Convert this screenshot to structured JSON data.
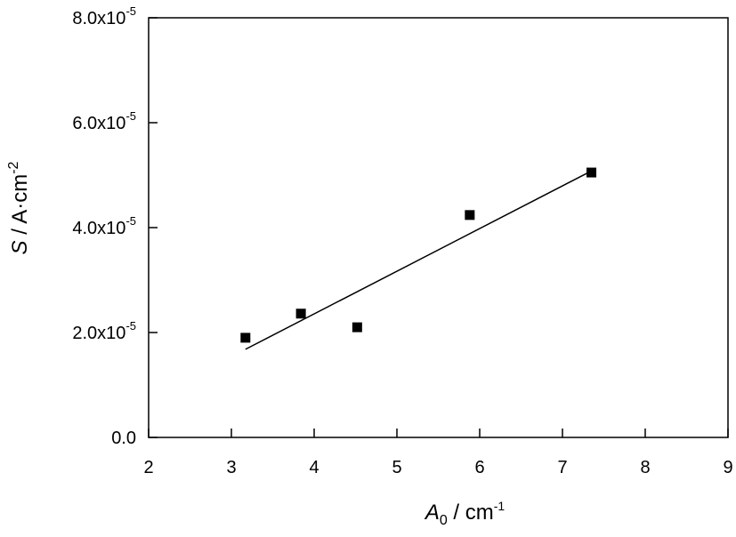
{
  "chart_data": {
    "type": "scatter",
    "xlabel": {
      "symbol": "A",
      "subscript": "0",
      "unit": " / cm",
      "unit_exp": "-1"
    },
    "ylabel": {
      "symbol": "S",
      "unit": " / A·cm",
      "unit_exp": "-2"
    },
    "xlim": [
      2,
      9
    ],
    "ylim": [
      0,
      8e-05
    ],
    "x_ticks": [
      2,
      3,
      4,
      5,
      6,
      7,
      8,
      9
    ],
    "x_tick_labels": [
      "2",
      "3",
      "4",
      "5",
      "6",
      "7",
      "8",
      "9"
    ],
    "y_ticks": [
      {
        "value": 0,
        "label": "0.0",
        "exp": ""
      },
      {
        "value": 2e-05,
        "label": "2.0x10",
        "exp": "-5"
      },
      {
        "value": 4e-05,
        "label": "4.0x10",
        "exp": "-5"
      },
      {
        "value": 6e-05,
        "label": "6.0x10",
        "exp": "-5"
      },
      {
        "value": 8e-05,
        "label": "8.0x10",
        "exp": "-5"
      }
    ],
    "grid": false,
    "series": [
      {
        "marker": "square",
        "color": "#000000",
        "x": [
          3.17,
          3.84,
          4.52,
          5.88,
          7.35
        ],
        "y": [
          1.9e-05,
          2.36e-05,
          2.1e-05,
          4.24e-05,
          5.05e-05
        ]
      }
    ],
    "fit_line": {
      "color": "#000000",
      "x": [
        3.17,
        7.35
      ],
      "y": [
        1.68e-05,
        5.08e-05
      ]
    }
  }
}
